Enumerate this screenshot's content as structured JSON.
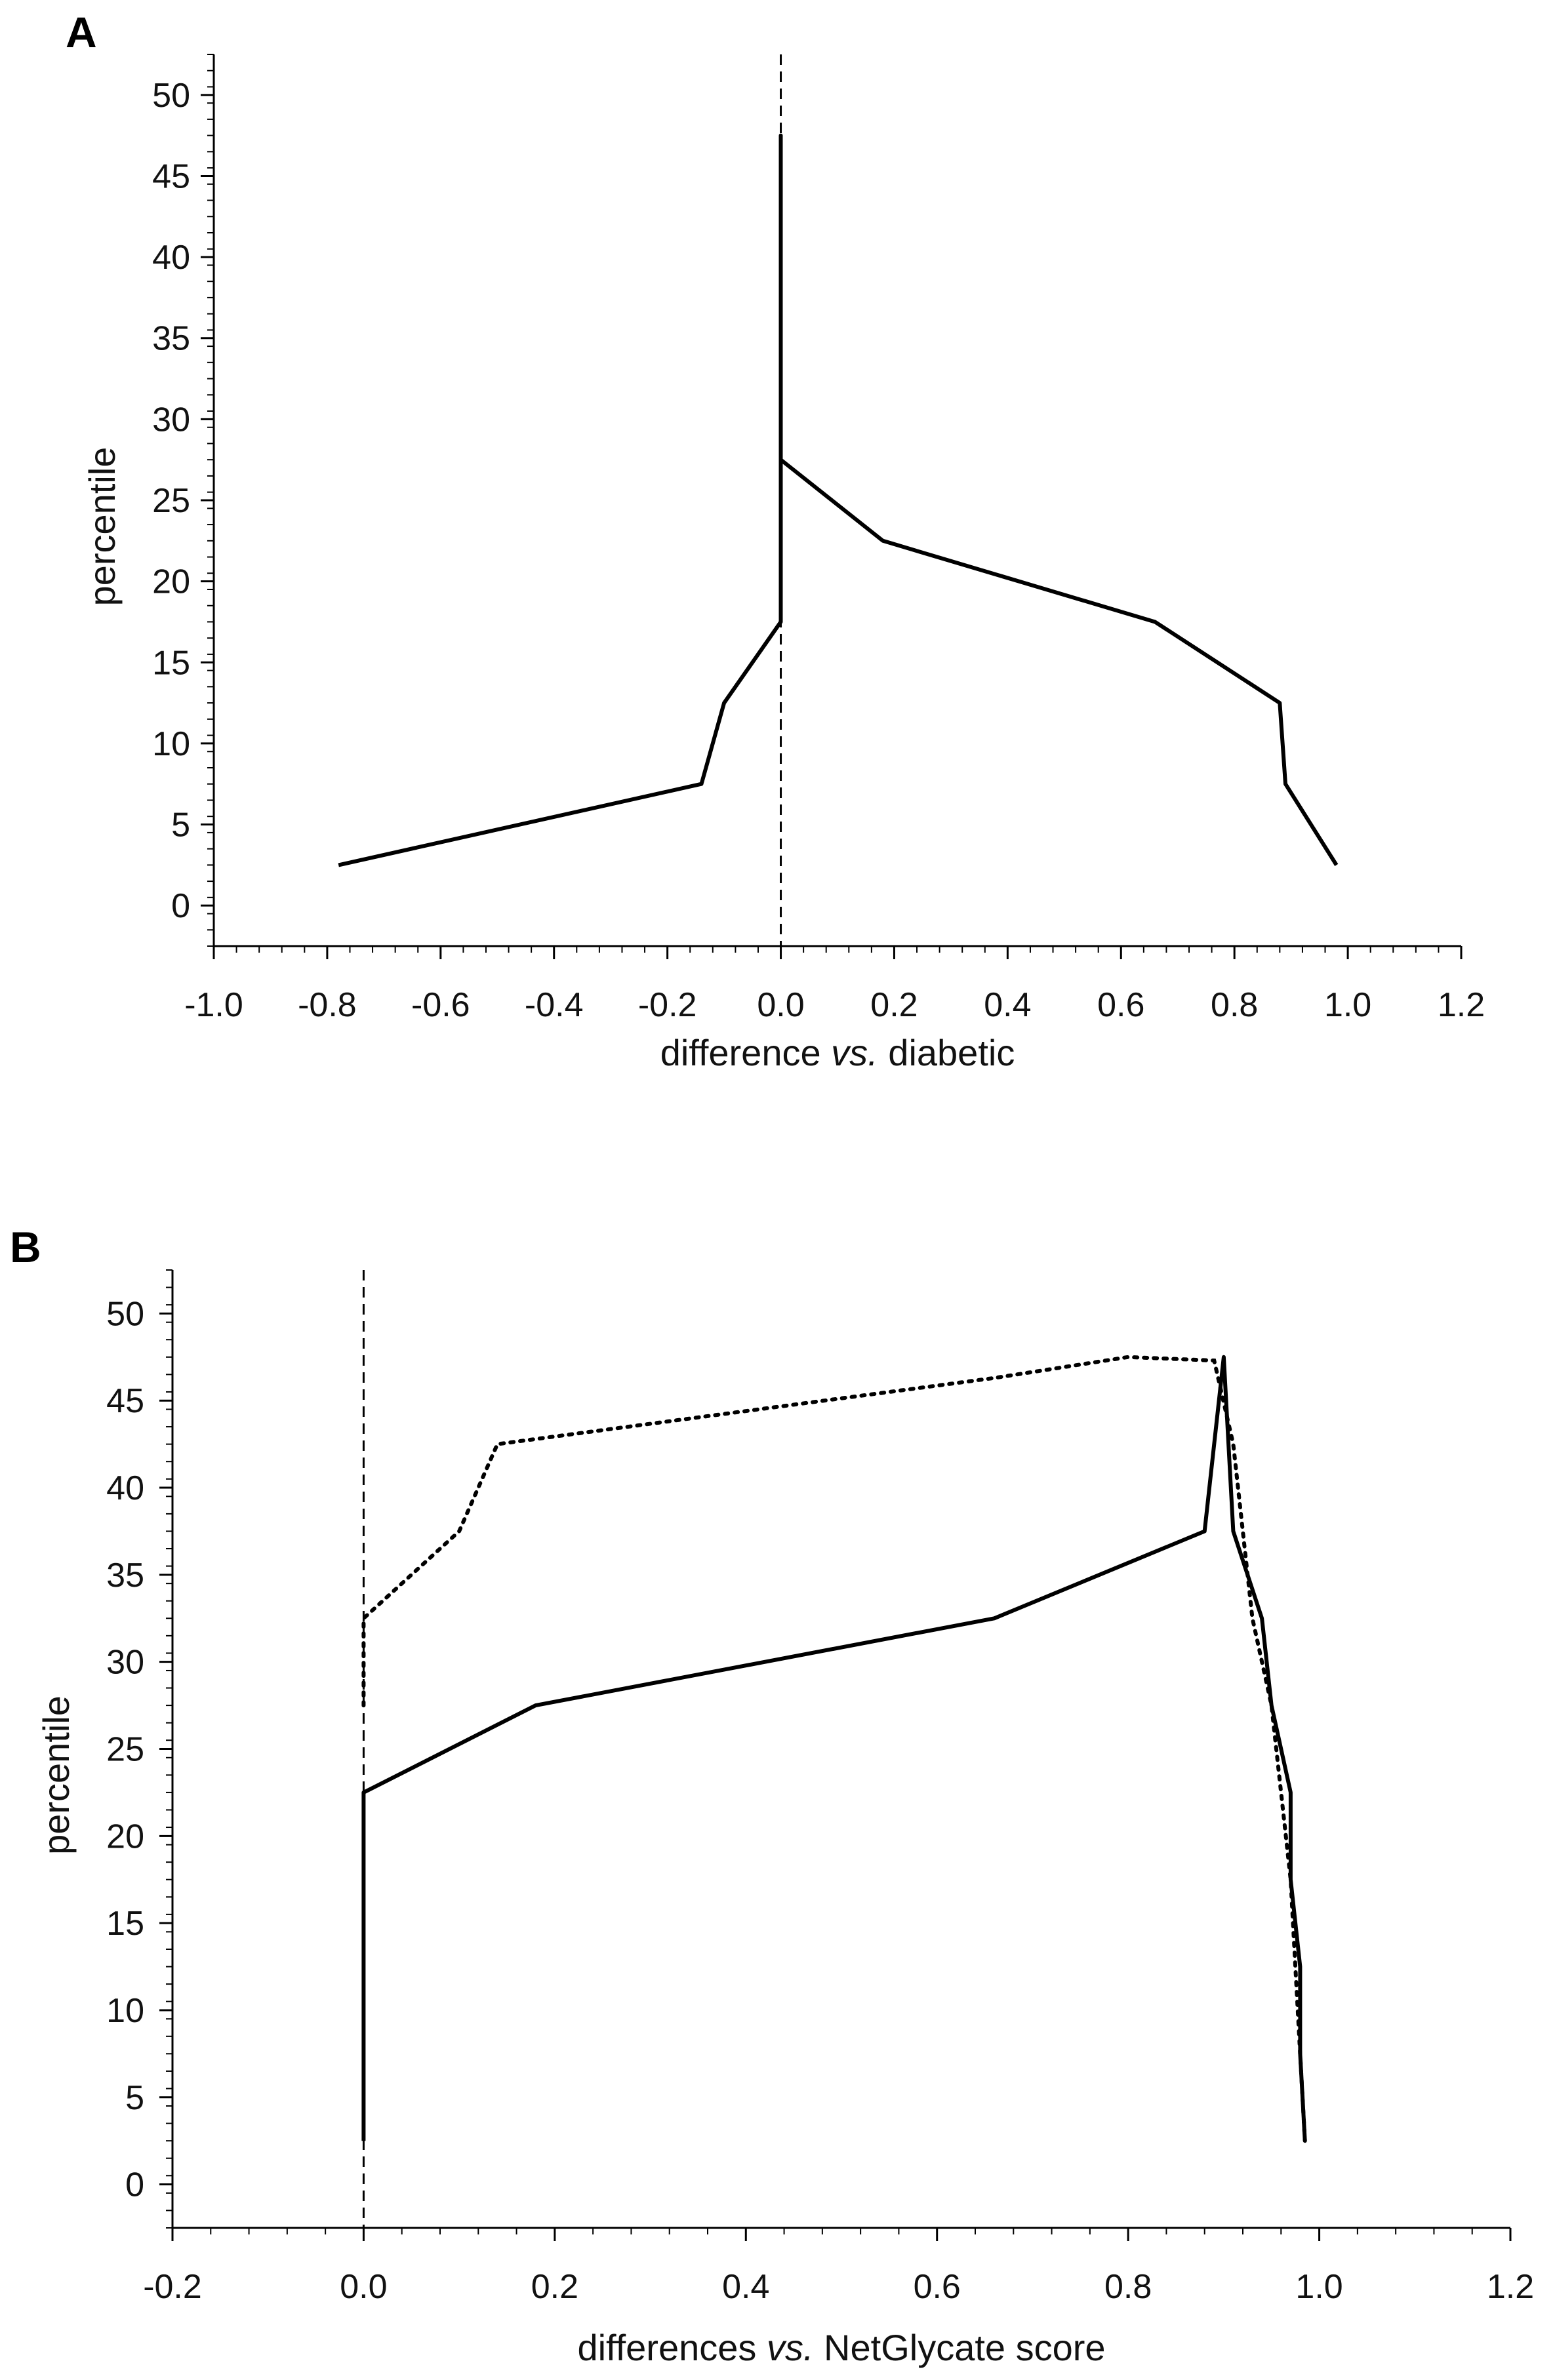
{
  "chart_data": [
    {
      "panel": "A",
      "type": "line",
      "xlabel": "difference vs. diabetic",
      "xlabel_parts": {
        "pre": "difference ",
        "italic": "vs.",
        "post": " diabetic"
      },
      "ylabel": "percentile",
      "xlim": [
        -1.0,
        1.2
      ],
      "ylim": [
        -2.5,
        52.5
      ],
      "xticks": [
        -1.0,
        -0.8,
        -0.6,
        -0.4,
        -0.2,
        0.0,
        0.2,
        0.4,
        0.6,
        0.8,
        1.0,
        1.2
      ],
      "xtick_labels": [
        "-1.0",
        "-0.8",
        "-0.6",
        "-0.4",
        "-0.2",
        "0.0",
        "0.2",
        "0.4",
        "0.6",
        "0.8",
        "1.0",
        "1.2"
      ],
      "yticks": [
        0,
        5,
        10,
        15,
        20,
        25,
        30,
        35,
        40,
        45,
        50
      ],
      "ytick_labels": [
        "0",
        "5",
        "10",
        "15",
        "20",
        "25",
        "30",
        "35",
        "40",
        "45",
        "50"
      ],
      "reference_line": {
        "x": 0.0,
        "style": "dashed"
      },
      "series": [
        {
          "name": "difference",
          "style": "solid",
          "points": [
            [
              -0.78,
              2.5
            ],
            [
              -0.14,
              7.5
            ],
            [
              -0.1,
              12.5
            ],
            [
              0.0,
              17.5
            ],
            [
              0.0,
              22.5
            ],
            [
              0.0,
              27.5
            ],
            [
              0.0,
              32.5
            ],
            [
              0.0,
              37.5
            ],
            [
              0.0,
              42.5
            ],
            [
              0.0,
              47.5
            ],
            [
              0.0,
              27.5
            ],
            [
              0.18,
              22.5
            ],
            [
              0.66,
              17.5
            ],
            [
              0.88,
              12.5
            ],
            [
              0.89,
              7.5
            ],
            [
              0.98,
              2.5
            ]
          ]
        }
      ]
    },
    {
      "panel": "B",
      "type": "line",
      "xlabel": "differences vs. NetGlycate score",
      "xlabel_parts": {
        "pre": "differences ",
        "italic": "vs.",
        "post": " NetGlycate score"
      },
      "ylabel": "percentile",
      "xlim": [
        -0.2,
        1.2
      ],
      "ylim": [
        -2.5,
        52.5
      ],
      "xticks": [
        -0.2,
        0.0,
        0.2,
        0.4,
        0.6,
        0.8,
        1.0,
        1.2
      ],
      "xtick_labels": [
        "-0.2",
        "0.0",
        "0.2",
        "0.4",
        "0.6",
        "0.8",
        "1.0",
        "1.2"
      ],
      "yticks": [
        0,
        5,
        10,
        15,
        20,
        25,
        30,
        35,
        40,
        45,
        50
      ],
      "ytick_labels": [
        "0",
        "5",
        "10",
        "15",
        "20",
        "25",
        "30",
        "35",
        "40",
        "45",
        "50"
      ],
      "reference_line": {
        "x": 0.0,
        "style": "dashed"
      },
      "series": [
        {
          "name": "solid curve",
          "style": "solid",
          "points": [
            [
              0.0,
              2.5
            ],
            [
              0.0,
              7.5
            ],
            [
              0.0,
              12.5
            ],
            [
              0.0,
              17.5
            ],
            [
              0.0,
              22.5
            ],
            [
              0.18,
              27.5
            ],
            [
              0.66,
              32.5
            ],
            [
              0.88,
              37.5
            ],
            [
              0.89,
              42.5
            ],
            [
              0.9,
              47.5
            ],
            [
              0.91,
              37.5
            ],
            [
              0.94,
              32.5
            ],
            [
              0.95,
              27.5
            ],
            [
              0.97,
              22.5
            ],
            [
              0.97,
              17.5
            ],
            [
              0.98,
              12.5
            ],
            [
              0.98,
              7.5
            ],
            [
              0.985,
              2.5
            ]
          ]
        },
        {
          "name": "dotted curve",
          "style": "dotted",
          "points": [
            [
              0.0,
              27.5
            ],
            [
              0.0,
              32.5
            ],
            [
              0.1,
              37.5
            ],
            [
              0.14,
              42.5
            ],
            [
              0.66,
              46.3
            ],
            [
              0.8,
              47.5
            ],
            [
              0.89,
              47.3
            ],
            [
              0.91,
              42.5
            ],
            [
              0.92,
              37.5
            ],
            [
              0.93,
              32.5
            ],
            [
              0.95,
              27.5
            ],
            [
              0.96,
              22.5
            ],
            [
              0.97,
              17.5
            ],
            [
              0.975,
              12.5
            ],
            [
              0.98,
              7.5
            ],
            [
              0.985,
              2.5
            ]
          ]
        }
      ]
    }
  ]
}
